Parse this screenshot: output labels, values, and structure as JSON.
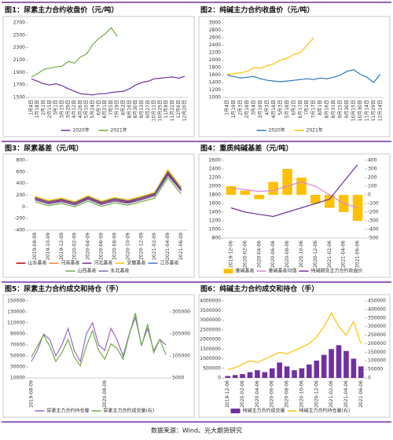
{
  "source": "数据来源：Wind、光大期货研究",
  "chart_data": [
    {
      "type": "line",
      "title": "图1：尿素主力合约收盘价（元/吨）",
      "categories": [
        "1月4日",
        "1月18日",
        "2月1日",
        "2月15日",
        "3月1日",
        "3月15日",
        "3月29日",
        "4月12日",
        "4月26日",
        "5月10日",
        "5月24日",
        "6月7日",
        "6月21日",
        "7月5日",
        "7月19日",
        "8月2日",
        "8月16日",
        "8月30日",
        "9月13日",
        "9月27日",
        "10月11日",
        "10月25日",
        "11月8日",
        "11月22日",
        "12月6日",
        "12月20日"
      ],
      "series": [
        {
          "name": "2020年",
          "color": "#7030a0",
          "values": [
            1800,
            1760,
            1720,
            1700,
            1720,
            1690,
            1640,
            1600,
            1560,
            1550,
            1540,
            1560,
            1560,
            1580,
            1590,
            1600,
            1640,
            1700,
            1740,
            1760,
            1800,
            1810,
            1820,
            1830,
            1810,
            1840
          ]
        },
        {
          "name": "2021年",
          "color": "#70ad47",
          "values": [
            1830,
            1880,
            1950,
            1970,
            1990,
            2000,
            2080,
            2050,
            2150,
            2200,
            2350,
            2450,
            2520,
            2620,
            2480,
            null,
            null,
            null,
            null,
            null,
            null,
            null,
            null,
            null,
            null,
            null
          ]
        }
      ],
      "ylim": [
        1500,
        2700
      ],
      "yticks": [
        1500,
        1700,
        1900,
        2100,
        2300,
        2500,
        2700
      ]
    },
    {
      "type": "line",
      "title": "图2：纯碱主力合约收盘价（元/吨）",
      "categories": [
        "1月4日",
        "1月19日",
        "2月3日",
        "2月18日",
        "3月4日",
        "3月19日",
        "4月3日",
        "4月18日",
        "5月3日",
        "5月18日",
        "6月2日",
        "6月17日",
        "7月2日",
        "7月17日",
        "8月1日",
        "8月16日",
        "8月31日",
        "9月15日",
        "9月30日",
        "10月15日",
        "10月30日",
        "11月14日",
        "11月29日",
        "12月14日"
      ],
      "series": [
        {
          "name": "2020年",
          "color": "#2e75b6",
          "values": [
            1600,
            1560,
            1520,
            1540,
            1560,
            1500,
            1460,
            1440,
            1420,
            1440,
            1460,
            1480,
            1500,
            1480,
            1520,
            1500,
            1540,
            1600,
            1700,
            1740,
            1620,
            1540,
            1400,
            1620
          ]
        },
        {
          "name": "2021年",
          "color": "#ffc000",
          "values": [
            1620,
            1640,
            1660,
            1700,
            1800,
            1780,
            1850,
            1900,
            2000,
            2050,
            2150,
            2200,
            2400,
            2600,
            null,
            null,
            null,
            null,
            null,
            null,
            null,
            null,
            null,
            null
          ]
        }
      ],
      "ylim": [
        1000,
        3000
      ],
      "yticks": [
        1000,
        1200,
        1400,
        1600,
        1800,
        2000,
        2200,
        2400,
        2600,
        2800,
        3000
      ]
    },
    {
      "type": "line",
      "title": "图3：尿素基差（元/吨）",
      "categories": [
        "2019-08-09",
        "2019-10-09",
        "2019-12-09",
        "2020-02-09",
        "2020-04-09",
        "2020-06-09",
        "2020-08-09",
        "2020-10-09",
        "2020-12-09",
        "2021-02-09",
        "2021-04-09",
        "2021-06-09"
      ],
      "series": [
        {
          "name": "山东基差",
          "color": "#c00000",
          "values": [
            150,
            80,
            120,
            60,
            160,
            70,
            130,
            90,
            150,
            220,
            580,
            300
          ]
        },
        {
          "name": "河南基差",
          "color": "#ed7d31",
          "values": [
            170,
            100,
            140,
            80,
            180,
            90,
            150,
            110,
            170,
            240,
            620,
            320
          ]
        },
        {
          "name": "河北基差",
          "color": "#7030a0",
          "values": [
            130,
            60,
            100,
            40,
            140,
            50,
            110,
            70,
            130,
            200,
            560,
            280
          ]
        },
        {
          "name": "安徽基差",
          "color": "#ffc000",
          "values": [
            180,
            110,
            150,
            90,
            190,
            100,
            160,
            120,
            180,
            250,
            640,
            340
          ]
        },
        {
          "name": "江苏基差",
          "color": "#4472c4",
          "values": [
            160,
            90,
            130,
            70,
            170,
            80,
            140,
            100,
            160,
            230,
            600,
            310
          ]
        },
        {
          "name": "山西基差",
          "color": "#70ad47",
          "values": [
            90,
            20,
            60,
            0,
            100,
            10,
            70,
            30,
            90,
            150,
            500,
            220
          ]
        },
        {
          "name": "东北基差",
          "color": "#8064a2",
          "values": [
            120,
            50,
            90,
            30,
            130,
            40,
            100,
            60,
            120,
            190,
            540,
            270
          ]
        }
      ],
      "ylim": [
        -400,
        800
      ],
      "yticks": [
        -400,
        -200,
        0,
        200,
        400,
        600,
        800
      ]
    },
    {
      "type": "combo",
      "title": "图4：重质纯碱基差（元/吨）",
      "categories": [
        "2019-12-06",
        "2020-02-06",
        "2020-04-06",
        "2020-06-06",
        "2020-08-06",
        "2020-10-06",
        "2020-12-06",
        "2021-02-06",
        "2021-04-06",
        "2021-06-06"
      ],
      "series": [
        {
          "name": "重碱基差",
          "type": "bar",
          "axis": "y2",
          "color": "#ffc000",
          "values": [
            100,
            50,
            -50,
            150,
            300,
            200,
            -100,
            -150,
            -200,
            -300
          ]
        },
        {
          "name": "重碱基差均值",
          "type": "line",
          "axis": "y2",
          "color": "#d48ad4",
          "values": [
            80,
            60,
            40,
            50,
            100,
            150,
            100,
            0,
            -100,
            -150
          ]
        },
        {
          "name": "纯碱期货主力合约收盘价",
          "type": "line",
          "color": "#7030a0",
          "values": [
            1500,
            1400,
            1350,
            1300,
            1400,
            1500,
            1600,
            1700,
            2100,
            2500
          ]
        }
      ],
      "ylim": [
        800,
        2600
      ],
      "yticks": [
        800,
        1000,
        1200,
        1400,
        1600,
        1800,
        2000,
        2200,
        2400,
        2600
      ],
      "y2lim": [
        -500,
        400
      ],
      "y2ticks": [
        -500,
        -400,
        -300,
        -200,
        -100,
        0,
        100,
        200,
        300,
        400
      ]
    },
    {
      "type": "line",
      "title": "图5：尿素主力合约成交和持仓（手）",
      "categories": [
        "2019-08-09",
        null,
        null,
        null,
        null,
        null,
        null,
        null,
        null,
        null,
        null,
        null,
        "2020-08-09",
        null,
        null,
        null,
        null,
        null,
        null,
        null,
        null,
        null,
        null
      ],
      "series": [
        {
          "name": "尿素主力合约持仓量",
          "color": "#9966cc",
          "values": [
            40000,
            60000,
            90000,
            80000,
            50000,
            70000,
            100000,
            60000,
            40000,
            90000,
            110000,
            70000,
            60000,
            100000,
            80000,
            50000,
            90000,
            120000,
            70000,
            100000,
            60000,
            80000,
            70000
          ]
        },
        {
          "name": "尿素主力合约成交量(右)",
          "axis": "y2",
          "color": "#70ad47",
          "values": [
            100000,
            150000,
            200000,
            150000,
            80000,
            120000,
            180000,
            100000,
            60000,
            150000,
            220000,
            130000,
            90000,
            160000,
            140000,
            90000,
            200000,
            300000,
            150000,
            250000,
            120000,
            180000,
            110000
          ]
        }
      ],
      "ylim": [
        10000,
        150000
      ],
      "yticks": [
        10000,
        30000,
        50000,
        70000,
        90000,
        110000,
        130000,
        150000
      ],
      "y2lim": [
        5000,
        355000
      ],
      "y2ticks": [
        5000,
        105000,
        205000,
        305000
      ]
    },
    {
      "type": "combo",
      "title": "图6：纯碱主力合约成交和持仓（手）",
      "categories": [
        "2019-12-06",
        null,
        "2020-02-06",
        null,
        "2020-04-06",
        null,
        "2020-06-06",
        null,
        "2020-08-06",
        null,
        "2020-10-06",
        null,
        "2020-12-06",
        null,
        "2021-02-06",
        null,
        "2021-04-06",
        null,
        "2021-06-06"
      ],
      "series": [
        {
          "name": "纯碱主力合约成交量",
          "type": "bar",
          "color": "#7030a0",
          "values": [
            100000,
            150000,
            200000,
            300000,
            400000,
            300000,
            500000,
            800000,
            600000,
            400000,
            500000,
            700000,
            900000,
            1200000,
            1500000,
            1700000,
            1400000,
            1000000,
            600000
          ]
        },
        {
          "name": "纯碱主力合约持仓量(右)",
          "type": "line",
          "axis": "y2",
          "color": "#ffc000",
          "values": [
            50000,
            60000,
            80000,
            100000,
            90000,
            110000,
            130000,
            150000,
            140000,
            160000,
            180000,
            200000,
            240000,
            300000,
            380000,
            300000,
            250000,
            330000,
            200000
          ]
        }
      ],
      "ylim": [
        0,
        4000000
      ],
      "yticks": [
        0,
        500000,
        1000000,
        1500000,
        2000000,
        2500000,
        3000000,
        3500000,
        4000000
      ],
      "y2lim": [
        0,
        450000
      ],
      "y2ticks": [
        0,
        50000,
        100000,
        150000,
        200000,
        250000,
        300000,
        350000,
        400000,
        450000
      ]
    }
  ]
}
